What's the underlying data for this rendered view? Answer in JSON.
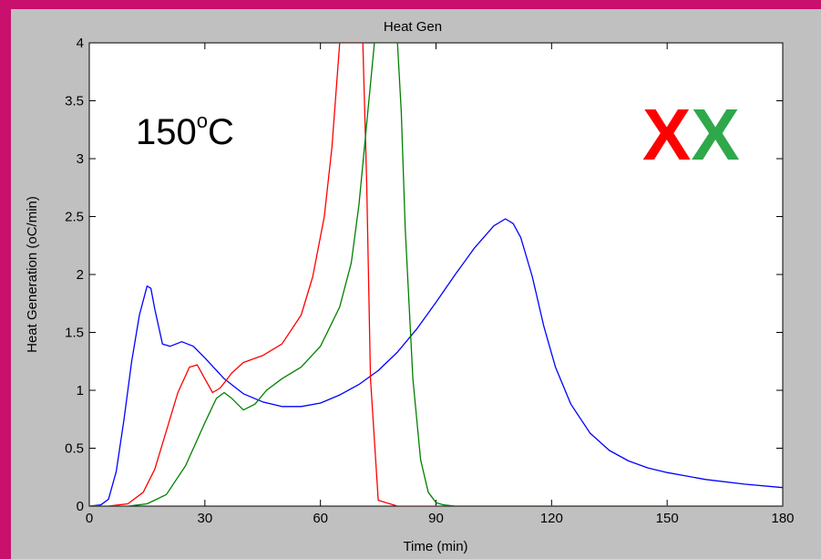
{
  "chart_data": {
    "type": "line",
    "title": "Heat Gen",
    "xlabel": "Time (min)",
    "ylabel": "Heat Generation (oC/min)",
    "xlim": [
      0,
      180
    ],
    "ylim": [
      0,
      4
    ],
    "xticks": [
      0,
      30,
      60,
      90,
      120,
      150,
      180
    ],
    "yticks": [
      0,
      0.5,
      1,
      1.5,
      2,
      2.5,
      3,
      3.5,
      4
    ],
    "xtick_labels": [
      "0",
      "30",
      "60",
      "90",
      "120",
      "150",
      "180"
    ],
    "ytick_labels": [
      "0",
      "0.5",
      "1",
      "1.5",
      "2",
      "2.5",
      "3",
      "3.5",
      "4"
    ],
    "grid": false,
    "series": [
      {
        "color": "#0000ff",
        "x": [
          0,
          3,
          5,
          7,
          9,
          11,
          13,
          15,
          16,
          17,
          19,
          21,
          24,
          27,
          30,
          35,
          40,
          45,
          50,
          55,
          60,
          65,
          70,
          75,
          80,
          85,
          90,
          95,
          100,
          105,
          108,
          110,
          112,
          115,
          118,
          121,
          125,
          130,
          135,
          140,
          145,
          150,
          155,
          160,
          170,
          180
        ],
        "y": [
          0,
          0.01,
          0.06,
          0.3,
          0.75,
          1.25,
          1.65,
          1.9,
          1.88,
          1.7,
          1.4,
          1.38,
          1.42,
          1.38,
          1.28,
          1.1,
          0.97,
          0.9,
          0.86,
          0.86,
          0.89,
          0.96,
          1.05,
          1.17,
          1.33,
          1.53,
          1.76,
          2.0,
          2.23,
          2.42,
          2.48,
          2.44,
          2.32,
          1.98,
          1.55,
          1.2,
          0.88,
          0.63,
          0.48,
          0.39,
          0.33,
          0.29,
          0.26,
          0.23,
          0.19,
          0.16
        ]
      },
      {
        "color": "#ff0000",
        "x": [
          0,
          5,
          10,
          14,
          17,
          20,
          23,
          26,
          28,
          30,
          32,
          34,
          37,
          40,
          45,
          50,
          55,
          58,
          61,
          63,
          65,
          66,
          67,
          68,
          69,
          70,
          71,
          72,
          73,
          75,
          80,
          90,
          180
        ],
        "y": [
          0,
          0,
          0.02,
          0.12,
          0.32,
          0.65,
          0.98,
          1.2,
          1.22,
          1.1,
          0.98,
          1.02,
          1.15,
          1.24,
          1.3,
          1.4,
          1.65,
          1.98,
          2.5,
          3.1,
          4.0,
          4.0,
          4.0,
          4.0,
          4.0,
          4.0,
          4.0,
          2.8,
          1.1,
          0.05,
          0.0,
          0.0,
          0.0
        ]
      },
      {
        "color": "#008000",
        "x": [
          0,
          10,
          15,
          20,
          25,
          30,
          33,
          35,
          37,
          40,
          43,
          46,
          50,
          55,
          60,
          65,
          68,
          70,
          72,
          74,
          75,
          76,
          77,
          78,
          79,
          80,
          81,
          82,
          84,
          86,
          88,
          90,
          92,
          95,
          180
        ],
        "y": [
          0,
          0,
          0.02,
          0.1,
          0.35,
          0.72,
          0.93,
          0.98,
          0.93,
          0.83,
          0.88,
          1.0,
          1.1,
          1.2,
          1.38,
          1.72,
          2.1,
          2.6,
          3.3,
          4.0,
          4.0,
          4.0,
          4.0,
          4.0,
          4.0,
          4.0,
          3.4,
          2.4,
          1.1,
          0.4,
          0.12,
          0.03,
          0.01,
          0.0,
          0.0
        ]
      }
    ]
  },
  "annotations": {
    "temperature_number": "150",
    "temperature_degree": "o",
    "temperature_unit": "C",
    "mark_red": "X",
    "mark_green": "X",
    "mark_red_color": "#ff0000",
    "mark_green_color": "#2ea84a"
  },
  "colors": {
    "frame_accent": "#c8106c",
    "figure_background": "#c0c0c0",
    "axes_background": "#ffffff"
  }
}
